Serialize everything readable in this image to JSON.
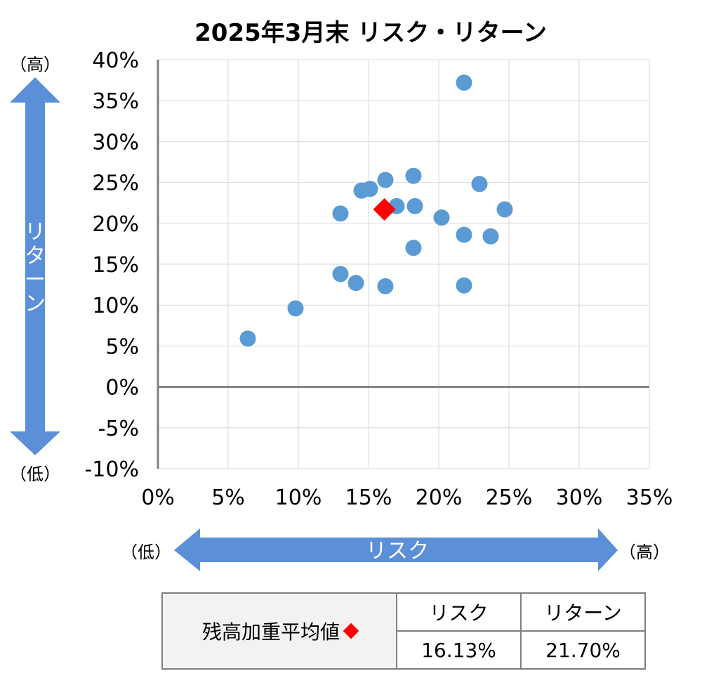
{
  "chart_data": {
    "type": "scatter",
    "title": "2025年3月末 リスク・リターン",
    "x_axis": {
      "label": "リスク",
      "range": [
        0,
        35
      ],
      "ticks": [
        "0%",
        "5%",
        "10%",
        "15%",
        "20%",
        "25%",
        "30%",
        "35%"
      ],
      "low_label": "（低）",
      "high_label": "（高）"
    },
    "y_axis": {
      "label": "リターン",
      "range": [
        -10,
        40
      ],
      "ticks": [
        "40%",
        "35%",
        "30%",
        "25%",
        "20%",
        "15%",
        "10%",
        "5%",
        "0%",
        "-5%",
        "-10%"
      ],
      "low_label": "（低）",
      "high_label": "（高）"
    },
    "grid": true,
    "legend": "none",
    "series": [
      {
        "marker": "circle",
        "color": "#5b9bd5",
        "points": [
          {
            "x": 6.4,
            "y": 5.9
          },
          {
            "x": 9.8,
            "y": 9.6
          },
          {
            "x": 13.0,
            "y": 21.2
          },
          {
            "x": 13.0,
            "y": 13.8
          },
          {
            "x": 14.1,
            "y": 12.7
          },
          {
            "x": 14.5,
            "y": 24.0
          },
          {
            "x": 15.1,
            "y": 24.2
          },
          {
            "x": 16.2,
            "y": 25.3
          },
          {
            "x": 16.2,
            "y": 12.3
          },
          {
            "x": 17.0,
            "y": 22.1
          },
          {
            "x": 18.2,
            "y": 25.8
          },
          {
            "x": 18.3,
            "y": 22.1
          },
          {
            "x": 18.2,
            "y": 17.0
          },
          {
            "x": 20.2,
            "y": 20.7
          },
          {
            "x": 21.8,
            "y": 37.2
          },
          {
            "x": 21.8,
            "y": 18.6
          },
          {
            "x": 21.8,
            "y": 12.4
          },
          {
            "x": 22.9,
            "y": 24.8
          },
          {
            "x": 23.7,
            "y": 18.4
          },
          {
            "x": 24.7,
            "y": 21.7
          }
        ]
      },
      {
        "marker": "diamond",
        "color": "#ff0000",
        "points": [
          {
            "x": 16.13,
            "y": 21.7
          }
        ]
      }
    ]
  },
  "summary_table": {
    "row_label": "残高加重平均値",
    "col_headers": [
      "リスク",
      "リターン"
    ],
    "values": [
      "16.13%",
      "21.70%"
    ]
  }
}
